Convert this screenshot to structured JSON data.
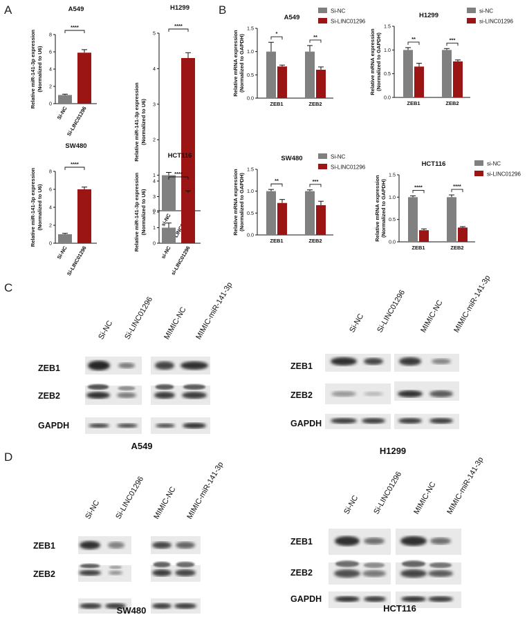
{
  "colors": {
    "control": "#808080",
    "treated": "#9b1515",
    "axis": "#111111"
  },
  "panel_labels": [
    "A",
    "B",
    "C",
    "D"
  ],
  "chart_data": [
    {
      "type": "bar",
      "panel": "A",
      "title": "A549",
      "ylabel": "Relative miR-141-3p expression",
      "ylabel2": "(Normalized to U6)",
      "categories": [
        "Si-NC",
        "Si-LINC01296"
      ],
      "values": [
        1.0,
        5.9
      ],
      "errors": [
        0.1,
        0.35
      ],
      "ylim": [
        0,
        8
      ],
      "yticks": [
        0,
        2,
        4,
        6,
        8
      ],
      "significance": "****"
    },
    {
      "type": "bar",
      "panel": "A",
      "title": "H1299",
      "ylabel": "Relative miR-141-3p expression",
      "ylabel2": "(Normalized to U6)",
      "categories": [
        "si-NC",
        "si-LINC01296"
      ],
      "values": [
        1.0,
        4.3
      ],
      "errors": [
        0.08,
        0.15
      ],
      "ylim": [
        0,
        5
      ],
      "yticks": [
        0,
        1,
        2,
        3,
        4,
        5
      ],
      "significance": "****"
    },
    {
      "type": "bar",
      "panel": "A",
      "title": "SW480",
      "ylabel": "Relative miR-141-3p expression",
      "ylabel2": "(Normalized to U6)",
      "categories": [
        "Si-NC",
        "Si-LINC01296"
      ],
      "values": [
        1.0,
        6.0
      ],
      "errors": [
        0.1,
        0.25
      ],
      "ylim": [
        0,
        8
      ],
      "yticks": [
        0,
        2,
        4,
        6,
        8
      ],
      "significance": "****"
    },
    {
      "type": "bar",
      "panel": "A",
      "title": "HCT116",
      "ylabel": "Relative miR-141-3p expression",
      "ylabel2": "(Normalized to U6)",
      "categories": [
        "si-NC",
        "si-LINC01296"
      ],
      "values": [
        1.0,
        3.25
      ],
      "errors": [
        0.3,
        0.12
      ],
      "ylim": [
        0,
        4
      ],
      "yticks": [
        0,
        1,
        2,
        3,
        4
      ],
      "significance": "****"
    },
    {
      "type": "bar",
      "panel": "B",
      "title": "A549",
      "ylabel": "Relative mRNA expression",
      "ylabel2": "(Normalized to GAPDH)",
      "categories": [
        "ZEB1",
        "ZEB2"
      ],
      "yticks": [
        "0.0",
        "0.5",
        "1.0",
        "1.5"
      ],
      "ylim": [
        0,
        1.5
      ],
      "series": [
        {
          "name": "Si-NC",
          "values": [
            1.0,
            1.0
          ],
          "errors": [
            0.2,
            0.13
          ]
        },
        {
          "name": "Si-LINC01296",
          "values": [
            0.68,
            0.61
          ],
          "errors": [
            0.03,
            0.06
          ]
        }
      ],
      "significance": [
        "*",
        "**"
      ],
      "legend": "right"
    },
    {
      "type": "bar",
      "panel": "B",
      "title": "H1299",
      "ylabel": "Relative mRNA expression",
      "ylabel2": "(Normalized to GAPDH)",
      "categories": [
        "ZEB1",
        "ZEB2"
      ],
      "yticks": [
        "0.0",
        "0.5",
        "1.0",
        "1.5"
      ],
      "ylim": [
        0,
        1.5
      ],
      "series": [
        {
          "name": "si-NC",
          "values": [
            1.0,
            1.0
          ],
          "errors": [
            0.05,
            0.03
          ]
        },
        {
          "name": "si-LINC01296",
          "values": [
            0.65,
            0.76
          ],
          "errors": [
            0.07,
            0.03
          ]
        }
      ],
      "significance": [
        "**",
        "***"
      ],
      "legend": "right"
    },
    {
      "type": "bar",
      "panel": "B",
      "title": "SW480",
      "ylabel": "Relative mRNA expression",
      "ylabel2": "(Normalized to GAPDH)",
      "categories": [
        "ZEB1",
        "ZEB2"
      ],
      "yticks": [
        "0.0",
        "0.5",
        "1.0",
        "1.5"
      ],
      "ylim": [
        0,
        1.5
      ],
      "series": [
        {
          "name": "Si-NC",
          "values": [
            1.0,
            1.0
          ],
          "errors": [
            0.04,
            0.03
          ]
        },
        {
          "name": "Si-LINC01296",
          "values": [
            0.73,
            0.68
          ],
          "errors": [
            0.08,
            0.09
          ]
        }
      ],
      "significance": [
        "**",
        "***"
      ],
      "legend": "right"
    },
    {
      "type": "bar",
      "panel": "B",
      "title": "HCT116",
      "ylabel": "Relative mRNA expression",
      "ylabel2": "(Normalized to GAPDH)",
      "categories": [
        "ZEB1",
        "ZEB2"
      ],
      "yticks": [
        "0.0",
        "0.5",
        "1.0",
        "1.5"
      ],
      "ylim": [
        0,
        1.5
      ],
      "series": [
        {
          "name": "si-NC",
          "values": [
            1.0,
            1.0
          ],
          "errors": [
            0.03,
            0.05
          ]
        },
        {
          "name": "si-LINC01296",
          "values": [
            0.26,
            0.32
          ],
          "errors": [
            0.03,
            0.02
          ]
        }
      ],
      "significance": [
        "****",
        "****"
      ],
      "legend": "right"
    }
  ],
  "blots": [
    {
      "panel": "C",
      "cell": "A549",
      "lanes": [
        "Si-NC",
        "Si-LINC01296",
        "MIMIC-NC",
        "MIMIC-miR-141-3p"
      ],
      "proteins": [
        "ZEB1",
        "ZEB2",
        "GAPDH"
      ]
    },
    {
      "panel": "C",
      "cell": "H1299",
      "lanes": [
        "Si-NC",
        "Si-LINC01296",
        "MIMIC-NC",
        "MIMIC-miR-141-3p"
      ],
      "proteins": [
        "ZEB1",
        "ZEB2",
        "GAPDH"
      ]
    },
    {
      "panel": "D",
      "cell": "SW480",
      "lanes": [
        "Si-NC",
        "Si-LINC01296",
        "MIMIC-NC",
        "MIMIC-miR-141-3p"
      ],
      "proteins": [
        "ZEB1",
        "ZEB2",
        ""
      ]
    },
    {
      "panel": "D",
      "cell": "HCT116",
      "lanes": [
        "Si-NC",
        "Si-LINC01296",
        "MIMIC-NC",
        "MIMIC-miR-141-3p"
      ],
      "proteins": [
        "ZEB1",
        "ZEB2",
        "GAPDH"
      ]
    }
  ]
}
